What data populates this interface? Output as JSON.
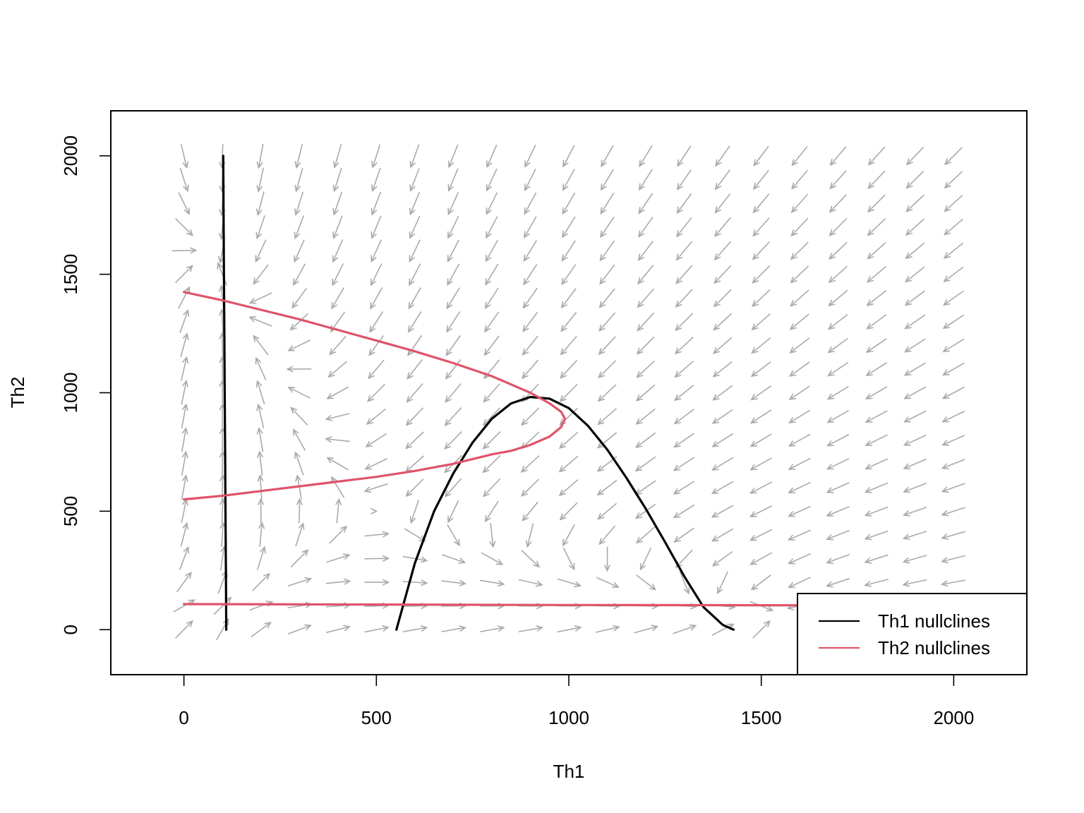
{
  "chart_data": {
    "type": "line",
    "title": "",
    "xlabel": "Th1",
    "ylabel": "Th2",
    "xlim": [
      -190,
      2190
    ],
    "ylim": [
      -190,
      2190
    ],
    "x_ticks": [
      0,
      500,
      1000,
      1500,
      2000
    ],
    "y_ticks": [
      0,
      500,
      1000,
      1500,
      2000
    ],
    "grid": false,
    "legend": {
      "position": "bottom-right",
      "entries": [
        {
          "label": "Th1 nullclines",
          "color": "#000000"
        },
        {
          "label": "Th2 nullclines",
          "color": "#DF536B"
        }
      ]
    },
    "vector_field": {
      "color": "#AAAAAA",
      "grid_start": 0,
      "grid_end": 2000,
      "grid_step": 100
    },
    "series": [
      {
        "name": "Th1 nullclines",
        "color": "#000000",
        "segments": [
          {
            "x": [
              102,
              103,
              104,
              105,
              106,
              107,
              108,
              109,
              110
            ],
            "y": [
              2000,
              1750,
              1500,
              1250,
              1000,
              750,
              500,
              250,
              0
            ]
          },
          {
            "x": [
              552,
              600,
              650,
              700,
              750,
              800,
              850,
              900,
              950,
              1000,
              1050,
              1100,
              1150,
              1200,
              1250,
              1300,
              1350,
              1400,
              1428
            ],
            "y": [
              0,
              280,
              500,
              660,
              790,
              890,
              955,
              982,
              975,
              935,
              860,
              760,
              640,
              510,
              370,
              225,
              95,
              20,
              0
            ]
          }
        ]
      },
      {
        "name": "Th2 nullclines",
        "color": "#DF536B",
        "segments": [
          {
            "x": [
              0,
              100,
              200,
              300,
              400,
              500,
              600,
              700,
              800,
              900,
              950,
              980,
              990,
              980,
              950,
              900,
              850,
              800,
              700,
              600,
              500,
              400,
              300,
              200,
              100,
              0
            ],
            "y": [
              1425,
              1390,
              1350,
              1310,
              1265,
              1220,
              1175,
              1125,
              1070,
              1000,
              955,
              920,
              890,
              855,
              815,
              780,
              755,
              740,
              700,
              670,
              645,
              625,
              605,
              585,
              565,
              550
            ]
          },
          {
            "x": [
              0,
              500,
              1000,
              1500,
              2000
            ],
            "y": [
              108,
              106,
              104,
              103,
              102
            ]
          }
        ]
      }
    ]
  }
}
